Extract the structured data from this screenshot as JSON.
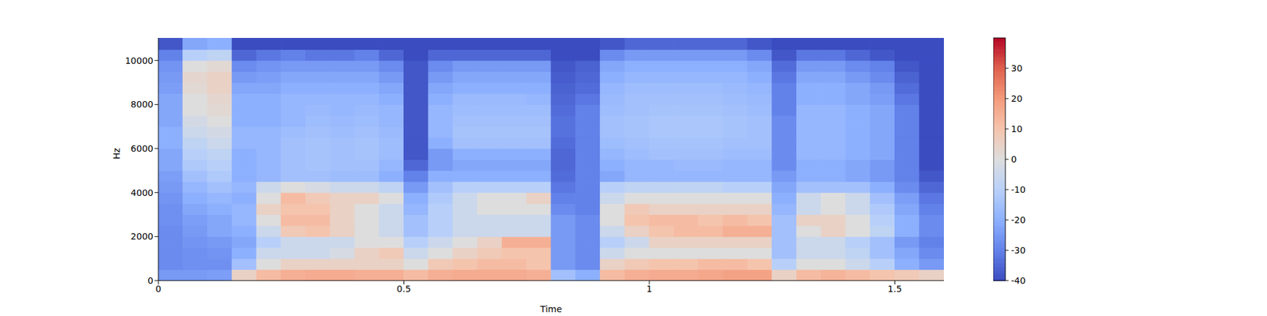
{
  "chart_data": {
    "type": "heatmap",
    "xlabel": "Time",
    "ylabel": "Hz",
    "xlim": [
      0,
      1.6
    ],
    "ylim": [
      0,
      11025
    ],
    "xticks": [
      0,
      0.5,
      1,
      1.5
    ],
    "yticks": [
      0,
      2000,
      4000,
      6000,
      8000,
      10000
    ],
    "time_bins": [
      0,
      0.05,
      0.1,
      0.15,
      0.2,
      0.25,
      0.3,
      0.35,
      0.4,
      0.45,
      0.5,
      0.55,
      0.6,
      0.65,
      0.7,
      0.75,
      0.8,
      0.85,
      0.9,
      0.95,
      1,
      1.05,
      1.1,
      1.15,
      1.2,
      1.25,
      1.3,
      1.35,
      1.4,
      1.45,
      1.5,
      1.55,
      1.6
    ],
    "freq_bins": [
      0,
      500,
      1000,
      1500,
      2000,
      2500,
      3000,
      3500,
      4000,
      4500,
      5000,
      5500,
      6000,
      6500,
      7000,
      7500,
      8000,
      8500,
      9000,
      9500,
      10000,
      10500,
      11025
    ],
    "cells": [
      [
        -25,
        -28,
        -28,
        -28,
        -28,
        -27,
        -27,
        -26,
        -25,
        -24,
        -22,
        -22,
        -20,
        -20,
        -22,
        -22,
        -22,
        -24,
        -25,
        -26,
        -30,
        -38
      ],
      [
        -25,
        -27,
        -27,
        -26,
        -25,
        -24,
        -22,
        -20,
        -18,
        -15,
        -12,
        -10,
        -8,
        -5,
        -3,
        0,
        0,
        2,
        3,
        0,
        -10,
        -22
      ],
      [
        -24,
        -27,
        -26,
        -25,
        -22,
        -22,
        -20,
        -18,
        -15,
        -12,
        -10,
        -8,
        -5,
        -3,
        0,
        2,
        3,
        5,
        5,
        2,
        -8,
        -20
      ],
      [
        5,
        -15,
        -20,
        -22,
        -20,
        -18,
        -18,
        -20,
        -18,
        -20,
        -20,
        -20,
        -18,
        -18,
        -20,
        -20,
        -20,
        -22,
        -25,
        -28,
        -35,
        -40
      ],
      [
        12,
        0,
        -5,
        -10,
        -5,
        0,
        5,
        0,
        -5,
        -18,
        -18,
        -18,
        -18,
        -18,
        -20,
        -20,
        -20,
        -22,
        -24,
        -26,
        -32,
        -40
      ],
      [
        15,
        5,
        -5,
        -5,
        8,
        12,
        10,
        12,
        0,
        -15,
        -15,
        -15,
        -15,
        -16,
        -18,
        -18,
        -18,
        -20,
        -22,
        -25,
        -30,
        -40
      ],
      [
        16,
        5,
        -5,
        -5,
        10,
        12,
        10,
        8,
        -2,
        -15,
        -14,
        -14,
        -14,
        -15,
        -16,
        -17,
        -18,
        -20,
        -22,
        -25,
        -32,
        -40
      ],
      [
        16,
        5,
        -2,
        -5,
        5,
        5,
        5,
        5,
        -5,
        -16,
        -15,
        -15,
        -15,
        -16,
        -17,
        -18,
        -18,
        -20,
        -22,
        -25,
        -32,
        -40
      ],
      [
        15,
        5,
        5,
        0,
        0,
        0,
        0,
        5,
        -5,
        -16,
        -15,
        -14,
        -14,
        -15,
        -16,
        -17,
        -18,
        -20,
        -22,
        -25,
        -30,
        -40
      ],
      [
        15,
        5,
        8,
        0,
        -5,
        -5,
        -5,
        0,
        -8,
        -20,
        -18,
        -16,
        -16,
        -17,
        -18,
        -18,
        -20,
        -22,
        -25,
        -28,
        -35,
        -40
      ],
      [
        12,
        0,
        -5,
        -10,
        -15,
        -15,
        -18,
        -20,
        -25,
        -30,
        -35,
        -38,
        -38,
        -38,
        -38,
        -38,
        -38,
        -38,
        -38,
        -38,
        -40,
        -40
      ],
      [
        15,
        8,
        0,
        -5,
        -10,
        -10,
        -10,
        -12,
        -15,
        -20,
        -25,
        -25,
        -20,
        -18,
        -18,
        -18,
        -20,
        -22,
        -25,
        -28,
        -35,
        -40
      ],
      [
        16,
        10,
        5,
        0,
        -5,
        -5,
        -5,
        -5,
        -10,
        -20,
        -22,
        -20,
        -15,
        -14,
        -15,
        -16,
        -17,
        -20,
        -22,
        -25,
        -35,
        -40
      ],
      [
        16,
        12,
        8,
        5,
        -5,
        -5,
        0,
        0,
        -10,
        -20,
        -22,
        -20,
        -15,
        -14,
        -15,
        -16,
        -17,
        -20,
        -22,
        -25,
        -35,
        -40
      ],
      [
        16,
        12,
        10,
        15,
        -5,
        -5,
        0,
        0,
        -10,
        -20,
        -22,
        -20,
        -15,
        -14,
        -15,
        -16,
        -17,
        -20,
        -22,
        -25,
        -35,
        -40
      ],
      [
        15,
        10,
        10,
        15,
        -5,
        -5,
        0,
        5,
        -10,
        -20,
        -22,
        -20,
        -15,
        -14,
        -15,
        -16,
        -18,
        -20,
        -22,
        -25,
        -35,
        -40
      ],
      [
        -15,
        -25,
        -25,
        -25,
        -25,
        -25,
        -28,
        -30,
        -32,
        -34,
        -35,
        -35,
        -34,
        -33,
        -33,
        -34,
        -35,
        -36,
        -37,
        -38,
        -40,
        -40
      ],
      [
        -20,
        -28,
        -28,
        -28,
        -28,
        -28,
        -30,
        -30,
        -30,
        -30,
        -30,
        -30,
        -30,
        -30,
        -30,
        -30,
        -32,
        -34,
        -35,
        -36,
        -40,
        -40
      ],
      [
        12,
        5,
        -5,
        -10,
        -5,
        0,
        0,
        -5,
        -10,
        -22,
        -20,
        -18,
        -16,
        -15,
        -15,
        -16,
        -17,
        -18,
        -20,
        -22,
        -28,
        -38
      ],
      [
        15,
        8,
        0,
        -5,
        5,
        10,
        8,
        0,
        -8,
        -18,
        -18,
        -16,
        -15,
        -14,
        -14,
        -15,
        -15,
        -16,
        -18,
        -20,
        -25,
        -35
      ],
      [
        16,
        10,
        0,
        5,
        10,
        12,
        5,
        0,
        -8,
        -18,
        -18,
        -15,
        -14,
        -13,
        -13,
        -14,
        -15,
        -16,
        -18,
        -20,
        -25,
        -35
      ],
      [
        16,
        10,
        0,
        5,
        12,
        12,
        5,
        0,
        -8,
        -18,
        -17,
        -15,
        -14,
        -13,
        -13,
        -14,
        -15,
        -16,
        -18,
        -20,
        -25,
        -35
      ],
      [
        17,
        12,
        0,
        5,
        12,
        10,
        5,
        0,
        -8,
        -18,
        -17,
        -15,
        -14,
        -13,
        -13,
        -14,
        -15,
        -16,
        -18,
        -20,
        -25,
        -35
      ],
      [
        18,
        12,
        0,
        5,
        15,
        12,
        5,
        0,
        -10,
        -18,
        -18,
        -16,
        -15,
        -14,
        -14,
        -15,
        -16,
        -17,
        -18,
        -20,
        -25,
        -35
      ],
      [
        18,
        10,
        0,
        5,
        15,
        10,
        5,
        0,
        -10,
        -18,
        -18,
        -16,
        -15,
        -15,
        -15,
        -16,
        -17,
        -18,
        -20,
        -22,
        -28,
        -38
      ],
      [
        5,
        -10,
        -15,
        -15,
        -15,
        -15,
        -18,
        -20,
        -22,
        -25,
        -28,
        -28,
        -28,
        -28,
        -28,
        -30,
        -30,
        -30,
        -32,
        -34,
        -38,
        -40
      ],
      [
        12,
        0,
        -5,
        -5,
        0,
        5,
        -5,
        -5,
        -15,
        -20,
        -20,
        -18,
        -18,
        -18,
        -18,
        -18,
        -20,
        -20,
        -22,
        -25,
        -32,
        -40
      ],
      [
        14,
        0,
        -5,
        -5,
        5,
        5,
        0,
        0,
        -15,
        -20,
        -20,
        -18,
        -18,
        -18,
        -18,
        -18,
        -20,
        -20,
        -22,
        -25,
        -32,
        -40
      ],
      [
        12,
        -5,
        -8,
        -10,
        0,
        0,
        -5,
        -5,
        -15,
        -22,
        -22,
        -20,
        -20,
        -20,
        -20,
        -20,
        -22,
        -22,
        -25,
        -28,
        -35,
        -40
      ],
      [
        10,
        -10,
        -15,
        -15,
        -8,
        -10,
        -12,
        -15,
        -20,
        -25,
        -25,
        -22,
        -22,
        -22,
        -22,
        -22,
        -24,
        -25,
        -28,
        -30,
        -38,
        -40
      ],
      [
        8,
        -20,
        -22,
        -25,
        -20,
        -20,
        -22,
        -24,
        -28,
        -30,
        -30,
        -30,
        -30,
        -30,
        -30,
        -30,
        -32,
        -34,
        -36,
        -38,
        -40,
        -40
      ],
      [
        5,
        -25,
        -28,
        -30,
        -28,
        -28,
        -30,
        -32,
        -35,
        -38,
        -40,
        -40,
        -40,
        -40,
        -40,
        -40,
        -40,
        -40,
        -40,
        -40,
        -40,
        -40
      ]
    ],
    "colorbar": {
      "range": [
        -40,
        40
      ],
      "ticks": [
        -40,
        -30,
        -20,
        -10,
        0,
        10,
        20,
        30
      ]
    }
  }
}
